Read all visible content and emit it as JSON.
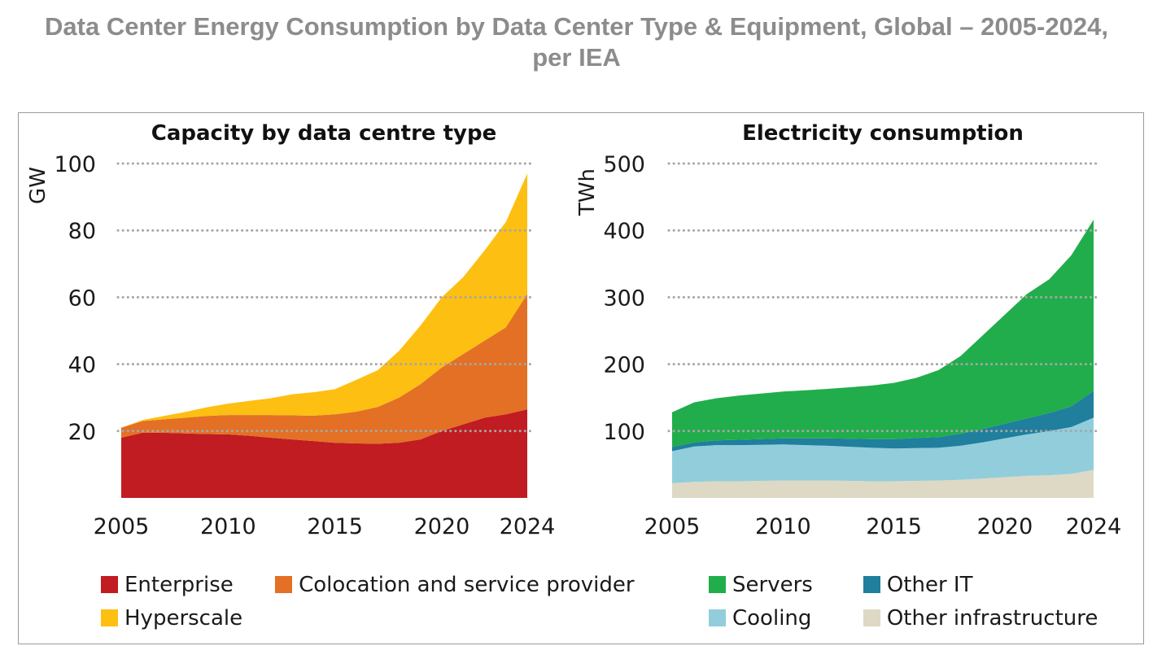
{
  "title": {
    "line1": "Data Center Energy Consumption by Data Center Type & Equipment, Global – 2005-2024,",
    "line2": "per IEA"
  },
  "chart_data": [
    {
      "type": "area",
      "stacked": true,
      "title": "Capacity by data centre type",
      "ylabel": "GW",
      "xlabel": "",
      "ylim": [
        0,
        100
      ],
      "yticks": [
        20,
        40,
        60,
        80,
        100
      ],
      "xticks": [
        2005,
        2010,
        2015,
        2020,
        2024
      ],
      "grid": "horizontal dotted",
      "x": [
        2005,
        2006,
        2007,
        2008,
        2009,
        2010,
        2011,
        2012,
        2013,
        2014,
        2015,
        2016,
        2017,
        2018,
        2019,
        2020,
        2021,
        2022,
        2023,
        2024
      ],
      "series": [
        {
          "name": "Enterprise",
          "color": "#c01c22",
          "values": [
            18,
            19.5,
            19.5,
            19.3,
            19.1,
            19,
            18.6,
            18,
            17.5,
            17,
            16.5,
            16.3,
            16.2,
            16.5,
            17.5,
            20,
            22,
            24,
            25,
            26.5
          ]
        },
        {
          "name": "Colocation and service provider",
          "color": "#e37025",
          "values": [
            3,
            3.5,
            4,
            4.7,
            5.4,
            5.8,
            6.2,
            6.8,
            7.2,
            7.6,
            8.5,
            9.5,
            11,
            13.5,
            16.5,
            19,
            21,
            23,
            26,
            34.5
          ]
        },
        {
          "name": "Hyperscale",
          "color": "#fdbf11",
          "values": [
            0,
            0.3,
            1,
            1.7,
            2.6,
            3.4,
            4.2,
            5,
            6.3,
            7,
            7.5,
            9.5,
            11,
            14,
            17.5,
            21,
            23,
            27,
            31.5,
            36
          ]
        }
      ]
    },
    {
      "type": "area",
      "stacked": true,
      "title": "Electricity consumption",
      "ylabel": "TWh",
      "xlabel": "",
      "ylim": [
        0,
        500
      ],
      "yticks": [
        100,
        200,
        300,
        400,
        500
      ],
      "xticks": [
        2005,
        2010,
        2015,
        2020,
        2024
      ],
      "grid": "horizontal dotted",
      "x": [
        2005,
        2006,
        2007,
        2008,
        2009,
        2010,
        2011,
        2012,
        2013,
        2014,
        2015,
        2016,
        2017,
        2018,
        2019,
        2020,
        2021,
        2022,
        2023,
        2024
      ],
      "series": [
        {
          "name": "Other infrastructure",
          "color": "#ddd9c4",
          "values": [
            22,
            24,
            25,
            25,
            25.5,
            26,
            26,
            26,
            25.5,
            25,
            25,
            25.5,
            26,
            27,
            29,
            31,
            33,
            34,
            36,
            42
          ]
        },
        {
          "name": "Cooling",
          "color": "#92cddc",
          "values": [
            48,
            53,
            54,
            54,
            54,
            54,
            53,
            52,
            51,
            50,
            49,
            49,
            49,
            51,
            54,
            58,
            62,
            66,
            70,
            78
          ]
        },
        {
          "name": "Other IT",
          "color": "#1f7f9d",
          "values": [
            6,
            6,
            7,
            8,
            8.5,
            9,
            10,
            11,
            12,
            13,
            14,
            15,
            16,
            18,
            20,
            22,
            24,
            27,
            31,
            40
          ]
        },
        {
          "name": "Servers",
          "color": "#21ad4b",
          "values": [
            52,
            60,
            63,
            66,
            68,
            70,
            72,
            74,
            77,
            80,
            84,
            90,
            100,
            116,
            140,
            163,
            186,
            200,
            226,
            256
          ]
        }
      ]
    }
  ],
  "legend_left": [
    "Enterprise",
    "Colocation and service provider",
    "Hyperscale"
  ],
  "legend_right": [
    "Servers",
    "Other IT",
    "Cooling",
    "Other infrastructure"
  ]
}
